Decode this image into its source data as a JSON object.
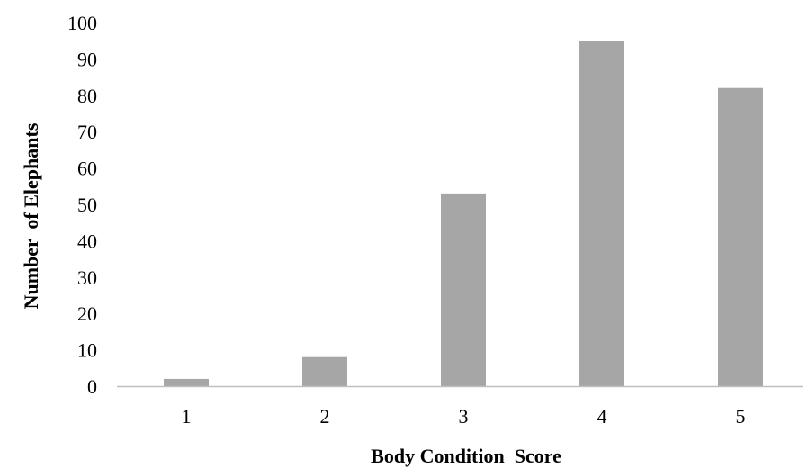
{
  "chart_data": {
    "type": "bar",
    "title": "",
    "xlabel": "Body Condition  Score",
    "ylabel": "Number  of Elephants",
    "categories": [
      "1",
      "2",
      "3",
      "4",
      "5"
    ],
    "values": [
      2,
      8,
      53,
      95,
      82
    ],
    "ylim": [
      0,
      100
    ],
    "yticks": [
      "0",
      "10",
      "20",
      "30",
      "40",
      "50",
      "60",
      "70",
      "80",
      "90",
      "100"
    ],
    "grid": false,
    "legend": "none",
    "bar_color": "#a6a6a6",
    "axis_color": "#bfbfbf"
  }
}
